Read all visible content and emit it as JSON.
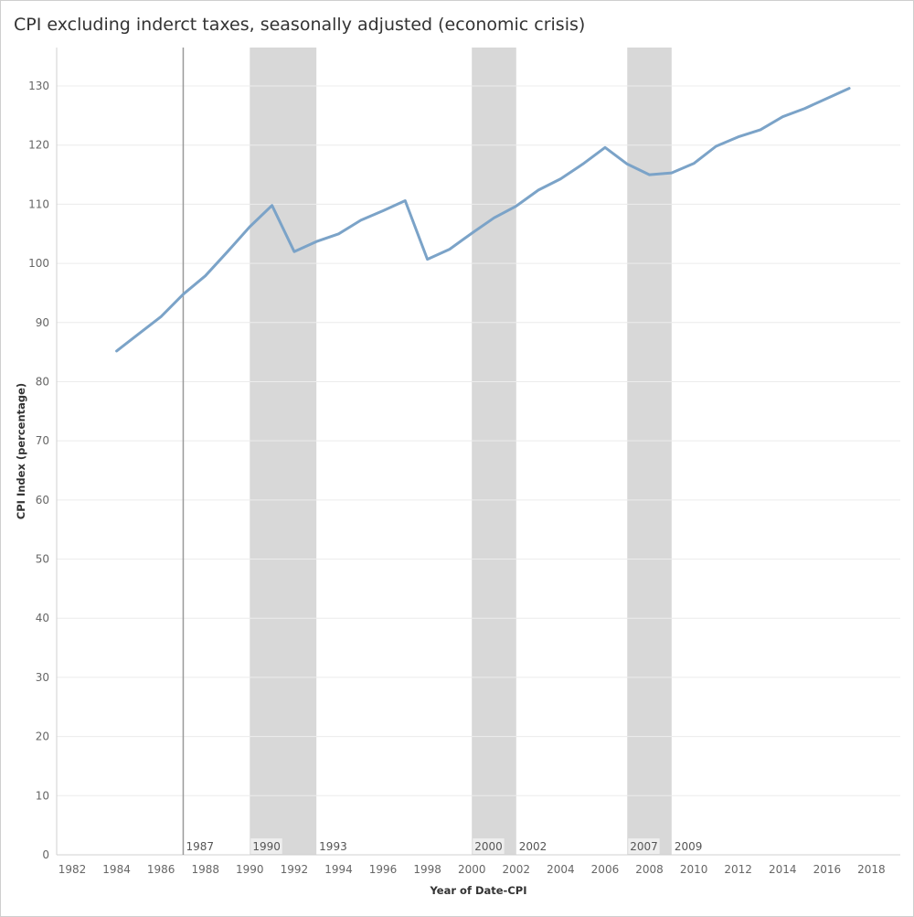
{
  "chart_data": {
    "type": "line",
    "title": "CPI excluding inderct taxes, seasonally adjusted (economic crisis)",
    "xlabel": "Year of Date-CPI",
    "ylabel": "CPI Index (percentage)",
    "xlim": [
      1981.3,
      2019.3
    ],
    "ylim": [
      0,
      136.5
    ],
    "x_ticks": [
      1982,
      1984,
      1986,
      1988,
      1990,
      1992,
      1994,
      1996,
      1998,
      2000,
      2002,
      2004,
      2006,
      2008,
      2010,
      2012,
      2014,
      2016,
      2018
    ],
    "y_ticks": [
      0,
      10,
      20,
      30,
      40,
      50,
      60,
      70,
      80,
      90,
      100,
      110,
      120,
      130
    ],
    "grid": true,
    "series": [
      {
        "name": "",
        "color": "#7ba3c8",
        "x": [
          1984,
          1985,
          1986,
          1987,
          1988,
          1989,
          1990,
          1991,
          1992,
          1993,
          1994,
          1995,
          1996,
          1997,
          1998,
          1999,
          2000,
          2001,
          2002,
          2003,
          2004,
          2005,
          2006,
          2007,
          2008,
          2009,
          2010,
          2011,
          2012,
          2013,
          2014,
          2015,
          2016,
          2017
        ],
        "y": [
          85.2,
          88.1,
          91.0,
          94.8,
          97.9,
          102.0,
          106.2,
          109.8,
          102.0,
          103.7,
          105.0,
          107.3,
          108.9,
          110.6,
          100.7,
          102.4,
          105.1,
          107.7,
          109.7,
          112.4,
          114.3,
          116.8,
          119.6,
          116.8,
          115.0,
          115.3,
          116.9,
          119.8,
          121.4,
          122.6,
          124.8,
          126.2,
          127.9,
          129.6
        ]
      }
    ],
    "reference_line": {
      "x": 1987,
      "label": "1987",
      "color": "#9a9a9a"
    },
    "crisis_bands": [
      {
        "start": 1990,
        "end": 1993,
        "start_label": "1990",
        "end_label": "1993"
      },
      {
        "start": 2000,
        "end": 2002,
        "start_label": "2000",
        "end_label": "2002"
      },
      {
        "start": 2007,
        "end": 2009,
        "start_label": "2007",
        "end_label": "2009"
      }
    ],
    "band_color": "#d8d8d8"
  }
}
